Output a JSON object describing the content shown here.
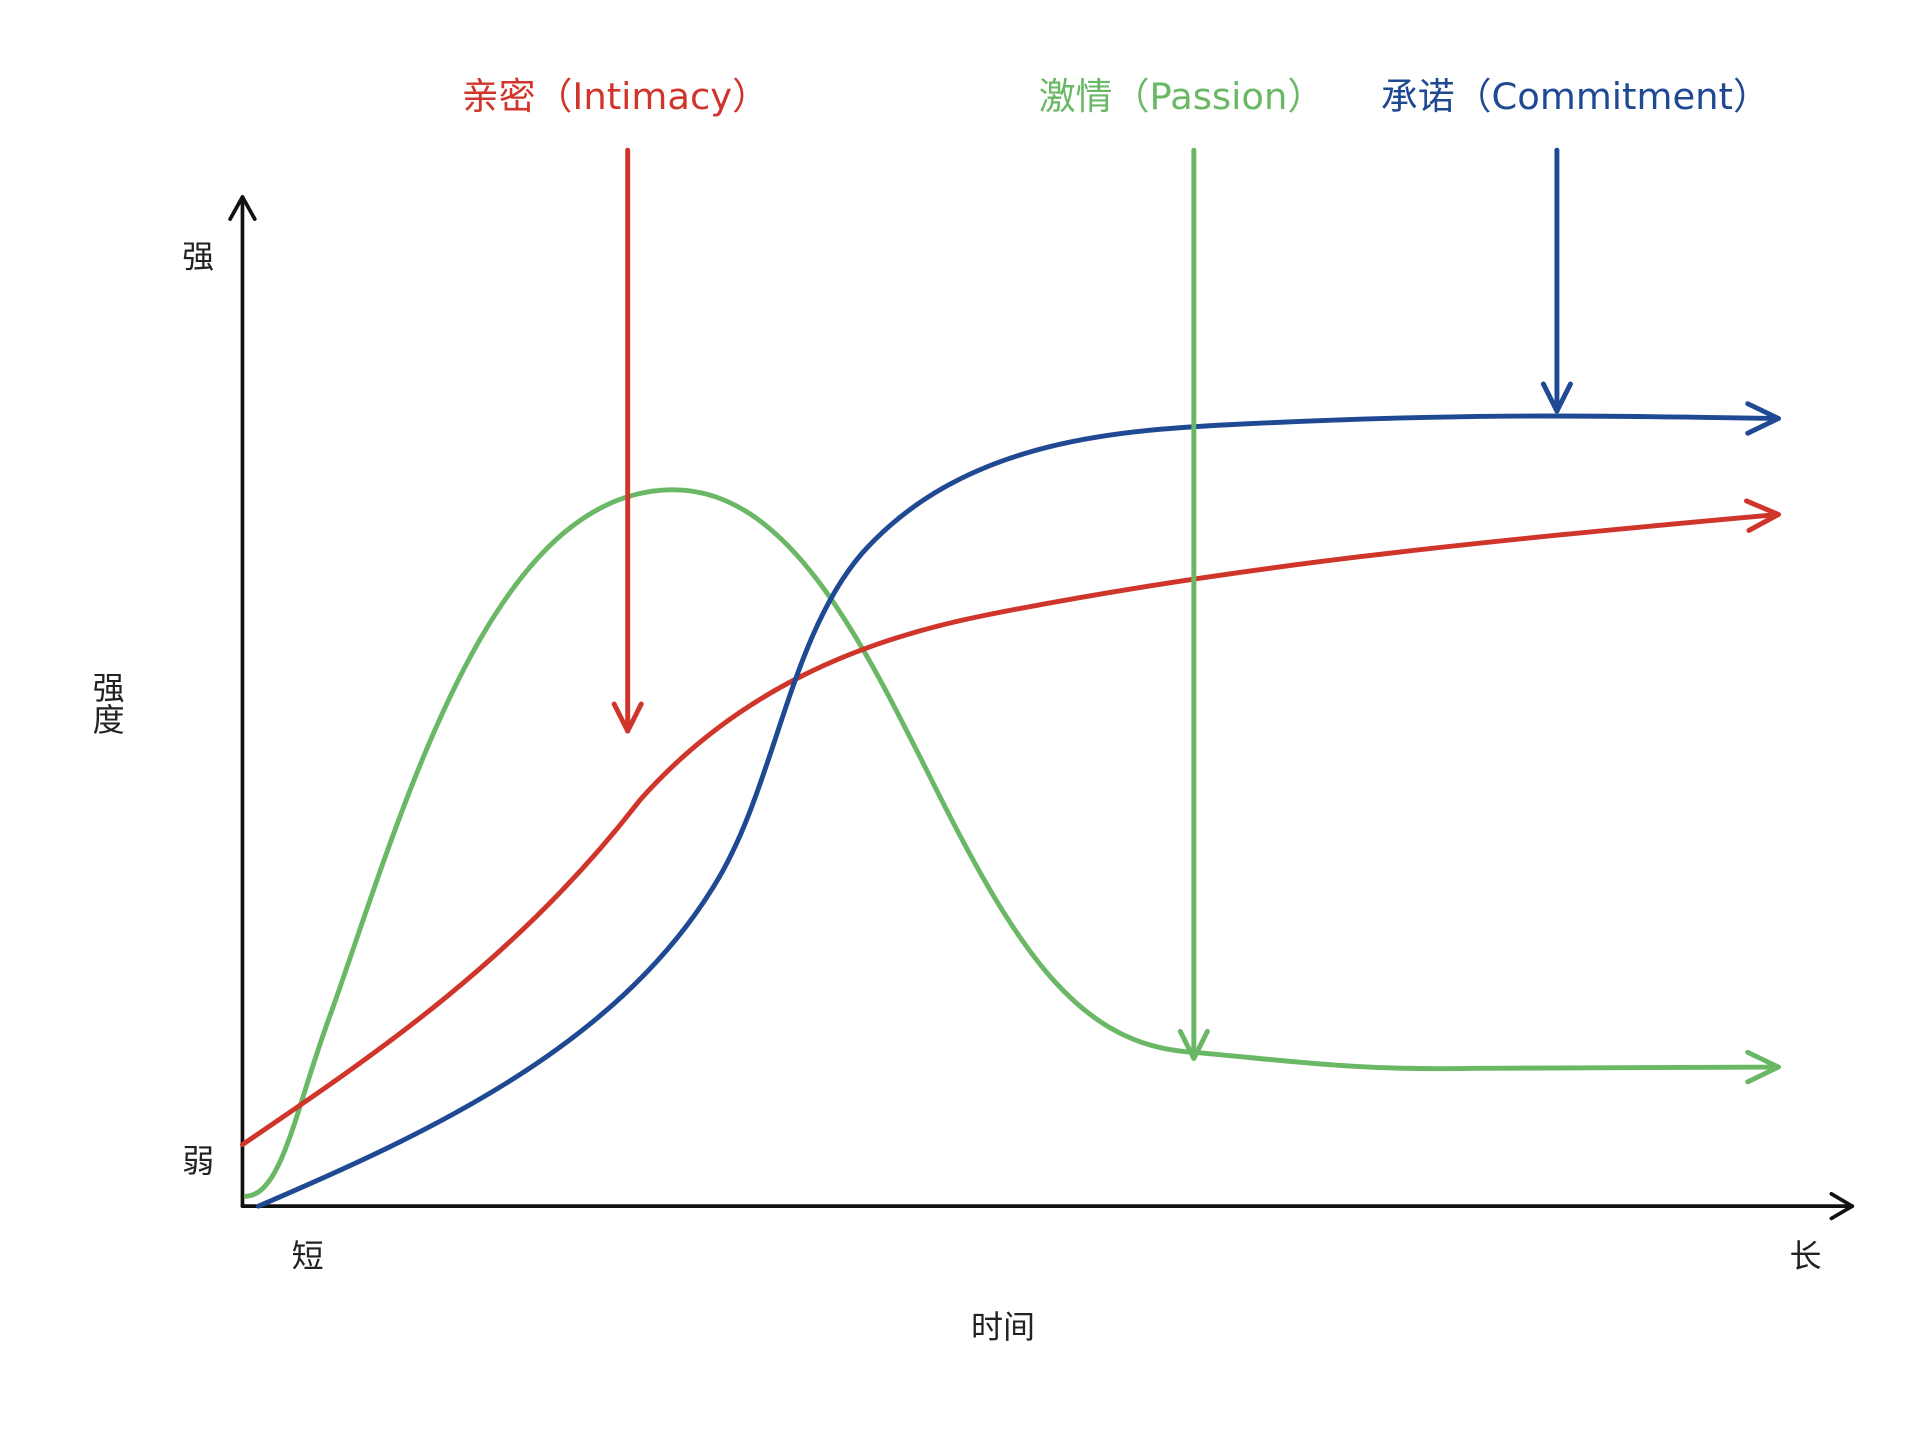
{
  "annotations": {
    "intimacy": "亲密（Intimacy）",
    "passion": "激情（Passion）",
    "commitment": "承诺（Commitment）"
  },
  "y_axis": {
    "title": "强度",
    "high": "强",
    "low": "弱"
  },
  "x_axis": {
    "title": "时间",
    "short": "短",
    "long": "长"
  }
}
